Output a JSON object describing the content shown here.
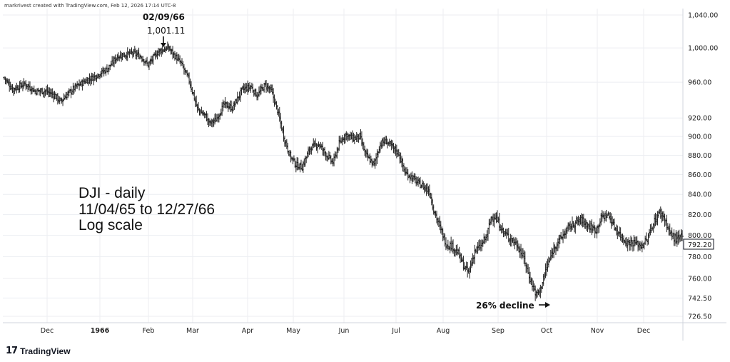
{
  "credit": "markrivest created with TradingView.com, Feb 12, 2026 17:14 UTC-8",
  "logo": {
    "mark": "17",
    "text": "TradingView",
    "icon": "tradingview-logo-icon"
  },
  "colors": {
    "bars": "#222222",
    "grid": "#eceef2",
    "price_label_bg": "#ffffff"
  },
  "chart_data": {
    "type": "ohlc",
    "log_scale": true,
    "grid": true,
    "y_ticks": [
      {
        "value": 1040,
        "label": "1,040.00"
      },
      {
        "value": 1000,
        "label": "1,000.00"
      },
      {
        "value": 960,
        "label": "960.00"
      },
      {
        "value": 920,
        "label": "920.00"
      },
      {
        "value": 900,
        "label": "900.00"
      },
      {
        "value": 880,
        "label": "880.00"
      },
      {
        "value": 860,
        "label": "860.00"
      },
      {
        "value": 840,
        "label": "840.00"
      },
      {
        "value": 820,
        "label": "820.00"
      },
      {
        "value": 800,
        "label": "800.00"
      },
      {
        "value": 780,
        "label": "780.00"
      },
      {
        "value": 760,
        "label": "760.00"
      },
      {
        "value": 742.5,
        "label": "742.50"
      },
      {
        "value": 726.5,
        "label": "726.50"
      }
    ],
    "x_ticks": [
      {
        "label": "Dec",
        "bold": false
      },
      {
        "label": "1966",
        "bold": true
      },
      {
        "label": "Feb",
        "bold": false
      },
      {
        "label": "Mar",
        "bold": false
      },
      {
        "label": "Apr",
        "bold": false
      },
      {
        "label": "May",
        "bold": false
      },
      {
        "label": "Jun",
        "bold": false
      },
      {
        "label": "Jul",
        "bold": false
      },
      {
        "label": "Aug",
        "bold": false
      },
      {
        "label": "Sep",
        "bold": false
      },
      {
        "label": "Oct",
        "bold": false
      },
      {
        "label": "Nov",
        "bold": false
      },
      {
        "label": "Dec",
        "bold": false
      }
    ],
    "last_price": {
      "value": 792.2,
      "label": "792.20"
    },
    "close_path": [
      [
        0,
        965
      ],
      [
        8,
        952
      ],
      [
        20,
        958
      ],
      [
        30,
        950
      ],
      [
        40,
        950
      ],
      [
        48,
        946
      ],
      [
        55,
        938
      ],
      [
        60,
        945
      ],
      [
        70,
        955
      ],
      [
        80,
        962
      ],
      [
        90,
        968
      ],
      [
        100,
        975
      ],
      [
        105,
        982
      ],
      [
        110,
        990
      ],
      [
        125,
        994
      ],
      [
        133,
        990
      ],
      [
        140,
        980
      ],
      [
        150,
        996
      ],
      [
        160,
        1000
      ],
      [
        165,
        992
      ],
      [
        172,
        982
      ],
      [
        180,
        962
      ],
      [
        188,
        930
      ],
      [
        196,
        922
      ],
      [
        200,
        914
      ],
      [
        206,
        918
      ],
      [
        214,
        935
      ],
      [
        222,
        931
      ],
      [
        232,
        952
      ],
      [
        240,
        955
      ],
      [
        246,
        945
      ],
      [
        254,
        957
      ],
      [
        260,
        950
      ],
      [
        266,
        928
      ],
      [
        272,
        900
      ],
      [
        278,
        880
      ],
      [
        284,
        870
      ],
      [
        290,
        868
      ],
      [
        298,
        888
      ],
      [
        306,
        892
      ],
      [
        314,
        880
      ],
      [
        320,
        872
      ],
      [
        326,
        892
      ],
      [
        332,
        902
      ],
      [
        340,
        898
      ],
      [
        346,
        900
      ],
      [
        352,
        880
      ],
      [
        360,
        870
      ],
      [
        366,
        892
      ],
      [
        372,
        895
      ],
      [
        378,
        888
      ],
      [
        384,
        882
      ],
      [
        390,
        862
      ],
      [
        396,
        858
      ],
      [
        402,
        852
      ],
      [
        408,
        848
      ],
      [
        414,
        843
      ],
      [
        418,
        825
      ],
      [
        424,
        808
      ],
      [
        430,
        792
      ],
      [
        436,
        790
      ],
      [
        442,
        783
      ],
      [
        448,
        770
      ],
      [
        452,
        765
      ],
      [
        458,
        785
      ],
      [
        464,
        790
      ],
      [
        470,
        800
      ],
      [
        474,
        817
      ],
      [
        478,
        818
      ],
      [
        486,
        803
      ],
      [
        494,
        796
      ],
      [
        500,
        790
      ],
      [
        506,
        778
      ],
      [
        510,
        765
      ],
      [
        515,
        752
      ],
      [
        518,
        745
      ],
      [
        522,
        750
      ],
      [
        528,
        770
      ],
      [
        536,
        790
      ],
      [
        544,
        800
      ],
      [
        550,
        808
      ],
      [
        556,
        812
      ],
      [
        562,
        815
      ],
      [
        570,
        808
      ],
      [
        576,
        805
      ],
      [
        582,
        818
      ],
      [
        588,
        820
      ],
      [
        594,
        808
      ],
      [
        600,
        800
      ],
      [
        606,
        793
      ],
      [
        614,
        793
      ],
      [
        620,
        790
      ],
      [
        626,
        796
      ],
      [
        632,
        812
      ],
      [
        638,
        822
      ],
      [
        642,
        818
      ],
      [
        648,
        802
      ],
      [
        654,
        796
      ],
      [
        660,
        798
      ]
    ],
    "annotations": [
      {
        "lines": [
          "02/09/66",
          "1,001.11"
        ],
        "marks": "peak"
      },
      {
        "text": "26% decline",
        "marks": "low"
      }
    ],
    "label_block": [
      "DJI - daily",
      "11/04/65 to 12/27/66",
      "Log scale"
    ]
  }
}
